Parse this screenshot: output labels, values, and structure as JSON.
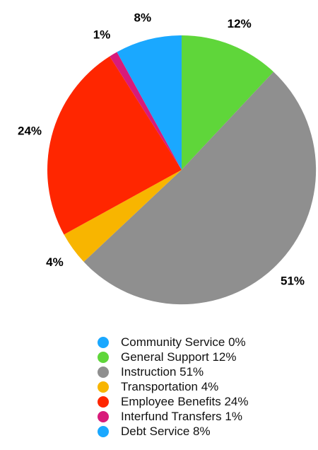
{
  "chart_data": {
    "type": "pie",
    "title": "",
    "start_angle_deg": 0,
    "direction": "clockwise",
    "slices": [
      {
        "label": "Community Service",
        "value": 0,
        "value_label": "",
        "color": "#1aa8ff"
      },
      {
        "label": "General Support",
        "value": 12,
        "value_label": "12%",
        "color": "#5fd63a"
      },
      {
        "label": "Instruction",
        "value": 51,
        "value_label": "51%",
        "color": "#8f8f8f"
      },
      {
        "label": "Transportation",
        "value": 4,
        "value_label": "4%",
        "color": "#f8b500"
      },
      {
        "label": "Employee Benefits",
        "value": 24,
        "value_label": "24%",
        "color": "#ff2600"
      },
      {
        "label": "Interfund Transfers",
        "value": 1,
        "value_label": "1%",
        "color": "#d81b7a"
      },
      {
        "label": "Debt Service",
        "value": 8,
        "value_label": "8%",
        "color": "#1aa8ff"
      }
    ],
    "legend": {
      "placement": "bottom",
      "entries": [
        "Community Service 0%",
        "General Support 12%",
        "Instruction 51%",
        "Transportation 4%",
        "Employee Benefits 24%",
        "Interfund Transfers 1%",
        "Debt Service 8%"
      ]
    }
  }
}
